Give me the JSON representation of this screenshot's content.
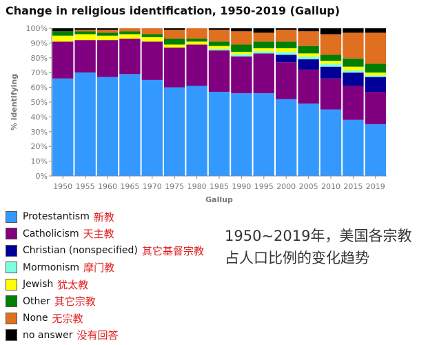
{
  "chart_data": {
    "type": "bar",
    "stacked": true,
    "title": "Change in religious identification, 1950-2019 (Gallup)",
    "xlabel": "Gallup",
    "ylabel": "% identifying",
    "ylim": [
      0,
      100
    ],
    "yticks": [
      "0%",
      "10%",
      "20%",
      "30%",
      "40%",
      "50%",
      "60%",
      "70%",
      "80%",
      "90%",
      "100%"
    ],
    "categories": [
      "1950",
      "1955",
      "1960",
      "1965",
      "1970",
      "1975",
      "1980",
      "1985",
      "1990",
      "1995",
      "2000",
      "2005",
      "2010",
      "2015",
      "2019"
    ],
    "series": [
      {
        "name": "Protestantism",
        "cn": "新教",
        "color": "#3399ff",
        "values": [
          66,
          70,
          67,
          69,
          65,
          60,
          61,
          57,
          56,
          56,
          52,
          49,
          45,
          38,
          35
        ]
      },
      {
        "name": "Catholicism",
        "cn": "天主教",
        "color": "#800080",
        "values": [
          25,
          22,
          25,
          24,
          26,
          27,
          28,
          28,
          25,
          27,
          25,
          23,
          21,
          23,
          22
        ]
      },
      {
        "name": "Christian (nonspecified)",
        "cn": "其它基督宗教",
        "color": "#000099",
        "values": [
          0,
          0,
          0,
          0,
          0,
          0,
          0,
          0,
          0,
          0,
          5,
          7,
          8,
          9,
          10
        ]
      },
      {
        "name": "Mormonism",
        "cn": "摩门教",
        "color": "#80ffe0",
        "values": [
          0,
          0,
          0,
          0,
          0,
          0,
          0,
          1,
          1.5,
          1.5,
          2,
          2,
          2,
          1.5,
          1
        ]
      },
      {
        "name": "Jewish",
        "cn": "犹太教",
        "color": "#ffff00",
        "values": [
          4,
          4,
          3,
          3,
          3,
          2,
          2,
          2,
          1.5,
          2,
          2.5,
          2,
          2,
          2.5,
          2
        ]
      },
      {
        "name": "Other",
        "cn": "其它宗教",
        "color": "#008000",
        "values": [
          3,
          2,
          2,
          2,
          2,
          4,
          2,
          3,
          5,
          4.5,
          4.5,
          5,
          4,
          5.5,
          6
        ]
      },
      {
        "name": "None",
        "cn": "无宗教",
        "color": "#e07020",
        "values": [
          0,
          1,
          2,
          2,
          4,
          6,
          7,
          8,
          9,
          6,
          8,
          10,
          14,
          17.5,
          21
        ]
      },
      {
        "name": "no answer",
        "cn": "没有回答",
        "color": "#000000",
        "values": [
          2,
          1,
          1,
          0,
          0,
          1,
          0,
          1,
          2,
          3,
          1,
          2,
          4,
          3,
          3
        ]
      }
    ]
  },
  "annotation": [
    "1950~2019年，美国各宗教",
    "占人口比例的变化趋势"
  ]
}
